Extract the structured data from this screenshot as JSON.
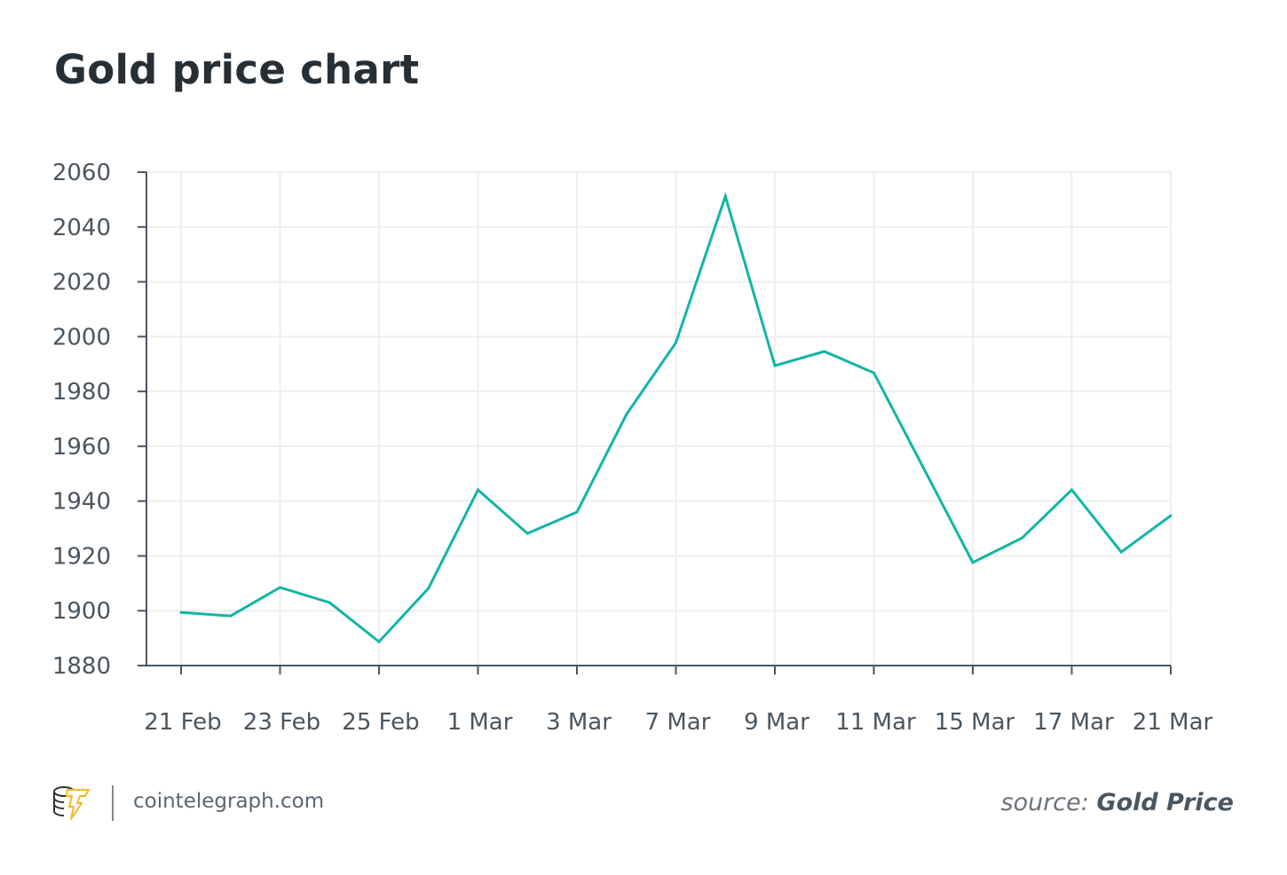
{
  "chart_data": {
    "type": "line",
    "title": "Gold price chart",
    "xlabel": "",
    "ylabel": "",
    "ylim": [
      1880,
      2060
    ],
    "yticks": [
      1880,
      1900,
      1920,
      1940,
      1960,
      1980,
      2000,
      2020,
      2040,
      2060
    ],
    "grid": true,
    "color": "#12b5a6",
    "x_tick_labels": [
      "21 Feb",
      "23 Feb",
      "25 Feb",
      "1 Mar",
      "3 Mar",
      "7 Mar",
      "9 Mar",
      "11 Mar",
      "15 Mar",
      "17 Mar",
      "21 Mar"
    ],
    "values": [
      1899.4,
      1898.1,
      1908.5,
      1903,
      1888.7,
      1908.2,
      1944.1,
      1928.2,
      1936,
      1971.6,
      1997.8,
      2051.2,
      1989.4,
      1994.6,
      1986.8,
      1952.2,
      1917.6,
      1926.6,
      1944.1,
      1921.4,
      1934.7
    ]
  },
  "footer": {
    "site": "cointelegraph.com",
    "source_prefix": "source:",
    "source_name": "Gold Price",
    "logo": "cointelegraph-logo"
  }
}
